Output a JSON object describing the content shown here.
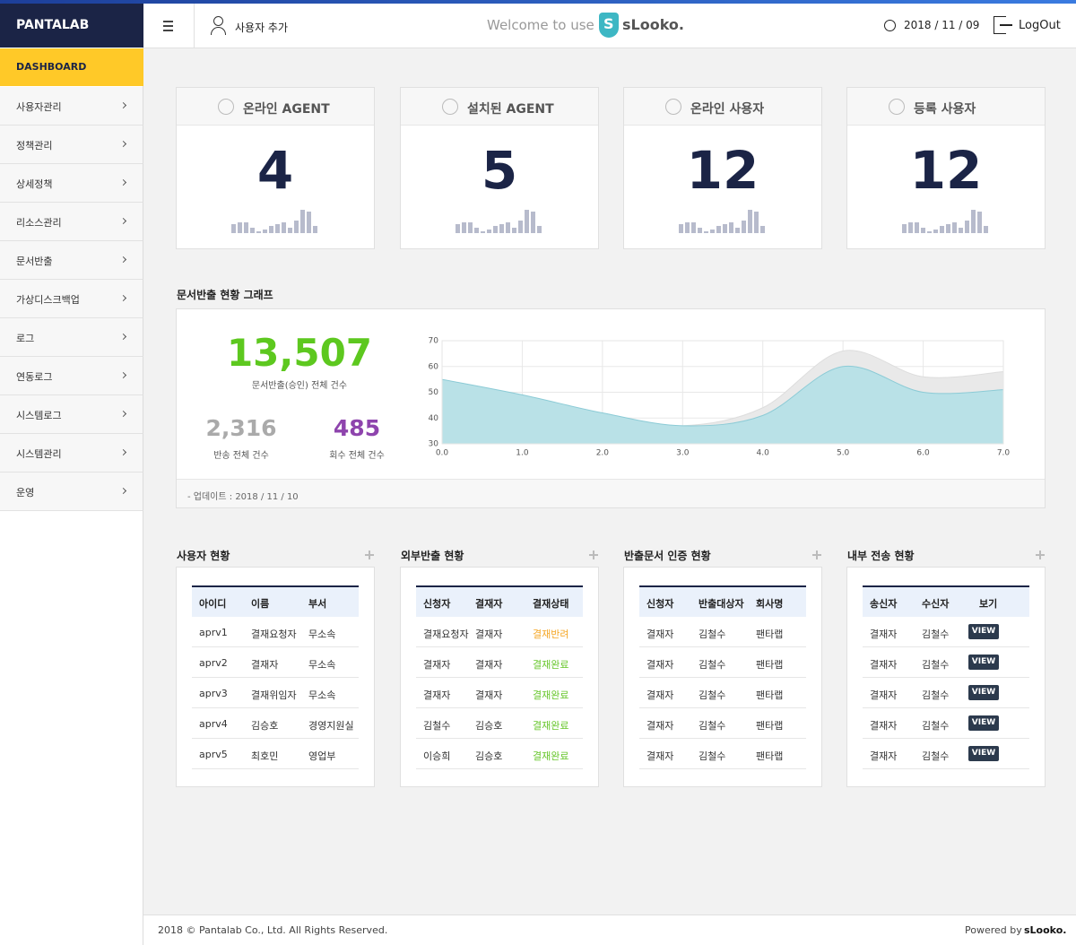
{
  "header": {
    "brand": "PANTALAB",
    "add_user": "사용자 추가",
    "welcome": "Welcome to use",
    "logo_mark": "S",
    "logo_text": "sLooko.",
    "date": "2018 / 11 / 09",
    "logout": "LogOut"
  },
  "sidebar": {
    "active": "DASHBOARD",
    "items": [
      "사용자관리",
      "정책관리",
      "상세정책",
      "리소스관리",
      "문서반출",
      "가상디스크백업",
      "로그",
      "연동로그",
      "시스템로그",
      "시스템관리",
      "운영"
    ]
  },
  "stat_cards": [
    {
      "title": "온라인 AGENT",
      "value": "4",
      "sparkline": [
        10,
        12,
        12,
        6,
        2,
        4,
        8,
        10,
        12,
        6,
        14,
        26,
        24,
        8
      ]
    },
    {
      "title": "설치된 AGENT",
      "value": "5",
      "sparkline": [
        10,
        12,
        12,
        6,
        2,
        4,
        8,
        10,
        12,
        6,
        14,
        26,
        24,
        8
      ]
    },
    {
      "title": "온라인 사용자",
      "value": "12",
      "sparkline": [
        10,
        12,
        12,
        6,
        2,
        4,
        8,
        10,
        12,
        6,
        14,
        26,
        24,
        8
      ]
    },
    {
      "title": "등록 사용자",
      "value": "12",
      "sparkline": [
        10,
        12,
        12,
        6,
        2,
        4,
        8,
        10,
        12,
        6,
        14,
        26,
        24,
        8
      ]
    }
  ],
  "graph_section": {
    "title": "문서반출 현황 그래프",
    "total": "13,507",
    "total_label": "문서반출(승인) 전체 건수",
    "returned": "2,316",
    "returned_label": "반송 전체 건수",
    "recovered": "485",
    "recovered_label": "회수 전체 건수",
    "update": "- 업데이트 : 2018 / 11 / 10"
  },
  "chart_data": {
    "type": "area",
    "x": [
      0,
      1,
      2,
      3,
      4,
      5,
      6,
      7
    ],
    "series": [
      {
        "color": "#e9e9e9",
        "values": [
          54,
          48,
          41,
          37,
          44,
          66,
          56,
          58
        ]
      },
      {
        "color": "#b9e1e7",
        "values": [
          55,
          49,
          42,
          37,
          41,
          60,
          50,
          51
        ]
      }
    ],
    "xlim": [
      0,
      7
    ],
    "ylim": [
      30,
      70
    ],
    "xticks": [
      {
        "value": 0,
        "label": "0.0"
      },
      {
        "value": 1,
        "label": "1.0"
      },
      {
        "value": 2,
        "label": "2.0"
      },
      {
        "value": 3,
        "label": "3.0"
      },
      {
        "value": 4,
        "label": "4.0"
      },
      {
        "value": 5,
        "label": "5.0"
      },
      {
        "value": 6,
        "label": "6.0"
      },
      {
        "value": 7,
        "label": "7.0"
      }
    ],
    "yticks": [
      30,
      40,
      50,
      60,
      70
    ],
    "grid": true
  },
  "panels": [
    {
      "title": "사용자 현황",
      "columns": [
        "아이디",
        "이름",
        "부서"
      ],
      "rows": [
        [
          "aprv1",
          "결재요청자",
          "무소속"
        ],
        [
          "aprv2",
          "결재자",
          "무소속"
        ],
        [
          "aprv3",
          "결재위임자",
          "무소속"
        ],
        [
          "aprv4",
          "김승호",
          "경영지원실"
        ],
        [
          "aprv5",
          "최호민",
          "영업부"
        ]
      ]
    },
    {
      "title": "외부반출 현황",
      "columns": [
        "신청자",
        "결재자",
        "결재상태"
      ],
      "rows": [
        [
          "결재요청자",
          "결재자",
          "결재반려"
        ],
        [
          "결재자",
          "결재자",
          "결재완료"
        ],
        [
          "결재자",
          "결재자",
          "결재완료"
        ],
        [
          "김철수",
          "김승호",
          "결재완료"
        ],
        [
          "이승희",
          "김승호",
          "결재완료"
        ]
      ],
      "status_colors": {
        "결재반려": "#f5a623",
        "결재완료": "#66c62a"
      }
    },
    {
      "title": "반출문서 인증 현황",
      "columns": [
        "신청자",
        "반출대상자",
        "회사명"
      ],
      "rows": [
        [
          "결재자",
          "김철수",
          "팬타랩"
        ],
        [
          "결재자",
          "김철수",
          "팬타랩"
        ],
        [
          "결재자",
          "김철수",
          "팬타랩"
        ],
        [
          "결재자",
          "김철수",
          "팬타랩"
        ],
        [
          "결재자",
          "김철수",
          "팬타랩"
        ]
      ]
    },
    {
      "title": "내부 전송 현황",
      "columns": [
        "송신자",
        "수신자",
        "보기"
      ],
      "rows": [
        [
          "결재자",
          "김철수",
          "VIEW"
        ],
        [
          "결재자",
          "김철수",
          "VIEW"
        ],
        [
          "결재자",
          "김철수",
          "VIEW"
        ],
        [
          "결재자",
          "김철수",
          "VIEW"
        ],
        [
          "결재자",
          "김철수",
          "VIEW"
        ]
      ]
    }
  ],
  "footer": {
    "copyright": "2018 © Pantalab Co., Ltd. All Rights Reserved.",
    "powered": "Powered by",
    "powered_brand": "sLooko."
  }
}
